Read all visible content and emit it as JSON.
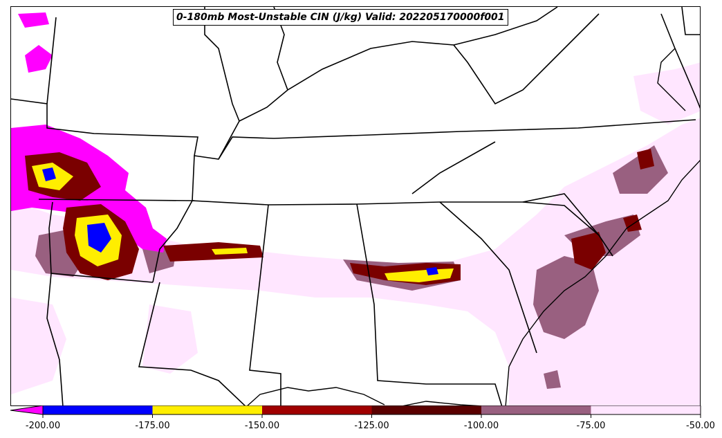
{
  "title": "0-180mb Most-Unstable CIN (J/kg) Valid: 202205170000f001",
  "colorbar": {
    "levels": [
      -200,
      -175,
      -150,
      -125,
      -100,
      -75,
      -50
    ],
    "tick_labels": [
      "-200.00",
      "-175.00",
      "-150.00",
      "-125.00",
      "-100.00",
      "-75.00",
      "-50.00"
    ],
    "colors": [
      "#0000ff",
      "#ffee00",
      "#a00000",
      "#5a0000",
      "#996080",
      "#ffe6ff"
    ],
    "under_color": "#ff00ff"
  }
}
